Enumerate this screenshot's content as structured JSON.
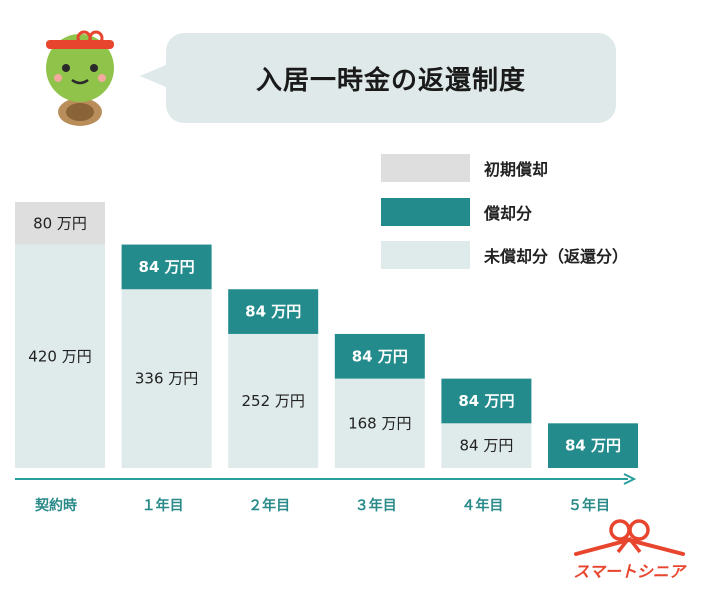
{
  "title": "入居一時金の返還制度",
  "legend": [
    {
      "label": "初期償却",
      "color": "#dedede"
    },
    {
      "label": "償却分",
      "color": "#238b8b"
    },
    {
      "label": "未償却分（返還分）",
      "color": "#dfeaea"
    }
  ],
  "colors": {
    "initial": "#dedede",
    "amortized": "#238b8b",
    "unamortized": "#dfeaea",
    "axis": "#2a9d9d",
    "logo": "#e8452f"
  },
  "chart_data": {
    "type": "bar",
    "stacked": true,
    "categories": [
      "契約時",
      "１年目",
      "２年目",
      "３年目",
      "４年目",
      "５年目"
    ],
    "unit": "万円",
    "series": [
      {
        "name": "未償却分（返還分）",
        "values": [
          420,
          336,
          252,
          168,
          84,
          0
        ],
        "labels": [
          "420 万円",
          "336 万円",
          "252 万円",
          "168 万円",
          "84 万円",
          ""
        ]
      },
      {
        "name": "償却分",
        "values": [
          0,
          84,
          84,
          84,
          84,
          84
        ],
        "labels": [
          "",
          "84 万円",
          "84 万円",
          "84 万円",
          "84 万円",
          "84 万円"
        ]
      },
      {
        "name": "初期償却",
        "values": [
          80,
          0,
          0,
          0,
          0,
          0
        ],
        "labels": [
          "80 万円",
          "",
          "",
          "",
          "",
          ""
        ]
      }
    ]
  },
  "logo_text": "スマートシニア",
  "mascot_icon": "turtle-mascot-icon",
  "logo_icon": "ribbon-logo-icon"
}
